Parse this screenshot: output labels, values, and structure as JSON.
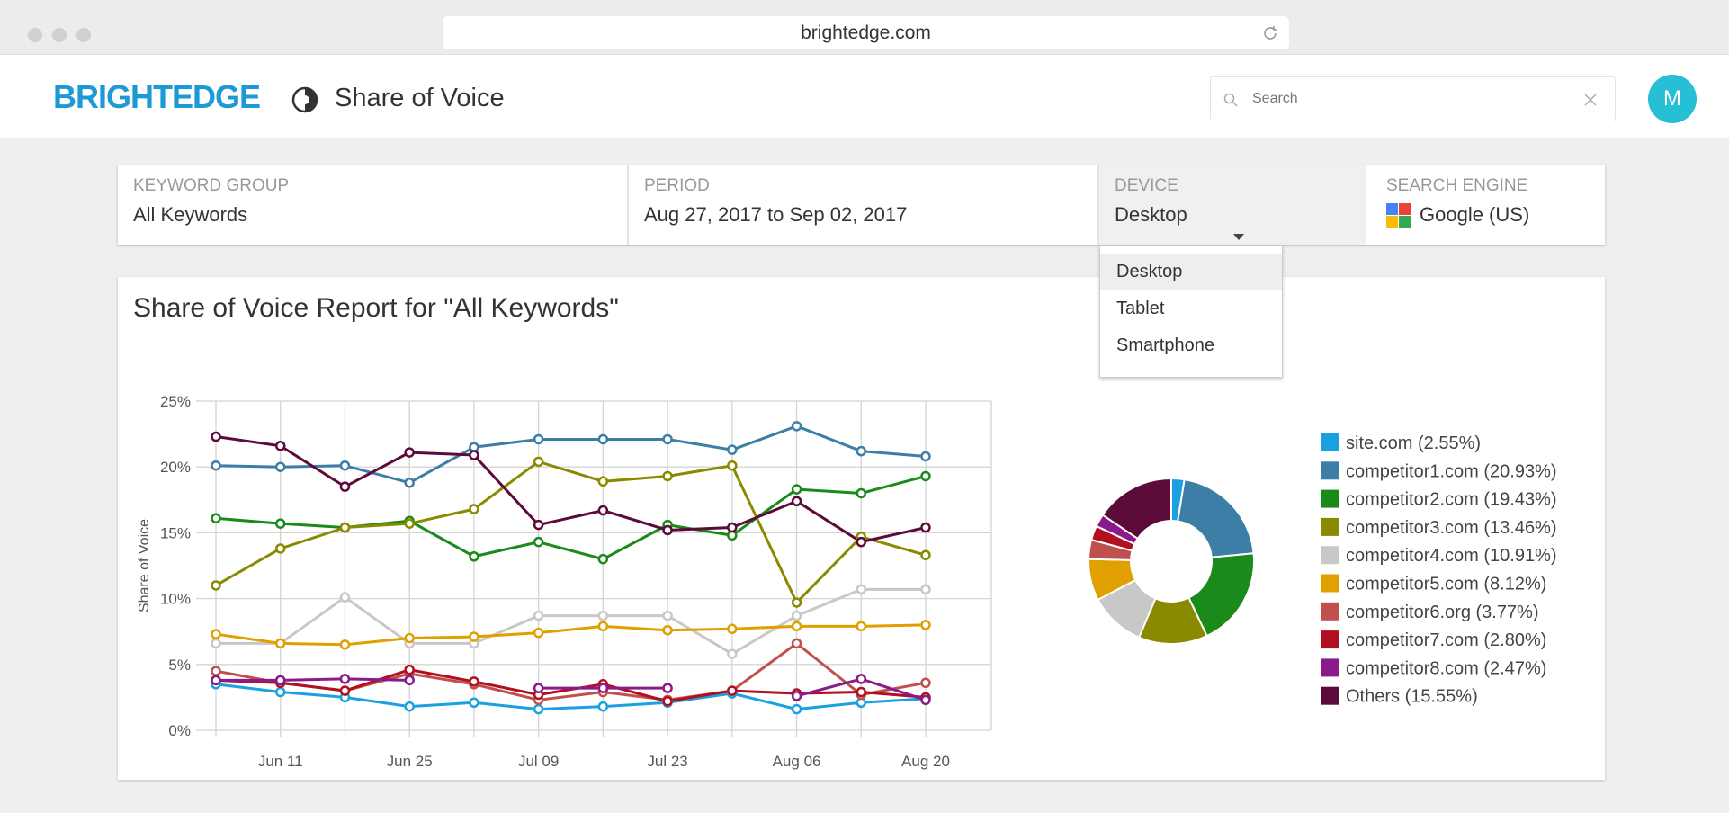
{
  "browser": {
    "url": "brightedge.com"
  },
  "header": {
    "logo": "BRIGHTEDGE",
    "page_title": "Share of Voice",
    "search": "Search",
    "avatar": "M"
  },
  "filters": [
    {
      "label": "KEYWORD GROUP",
      "value": "All Keywords"
    },
    {
      "label": "PERIOD",
      "value": "Aug 27, 2017 to Sep 02, 2017"
    },
    {
      "label": "DEVICE",
      "value": "Desktop"
    },
    {
      "label": "SEARCH ENGINE",
      "value": "Google (US)"
    }
  ],
  "device_menu": [
    "Desktop",
    "Tablet",
    "Smartphone"
  ],
  "report": {
    "title": "Share of Voice Report for \"All Keywords\""
  },
  "chart_data": [
    {
      "type": "line",
      "y_label": "Share of Voice",
      "categories": [
        null,
        "Jun 11",
        null,
        "Jun 25",
        null,
        "Jul 09",
        null,
        "Jul 23",
        null,
        "Aug 06",
        null,
        "Aug 20"
      ],
      "ylim": [
        0,
        25
      ],
      "yticks": [
        {
          "value": 0,
          "label": "0%"
        },
        {
          "value": 5,
          "label": "5%"
        },
        {
          "value": 10,
          "label": "10%"
        },
        {
          "value": 15,
          "label": "15%"
        },
        {
          "value": 20,
          "label": "20%"
        },
        {
          "value": 25,
          "label": "25%"
        }
      ],
      "grid": true,
      "series": [
        {
          "color": "#1ba1e2",
          "values": [
            3.5,
            2.9,
            2.5,
            1.8,
            2.1,
            1.6,
            1.8,
            2.1,
            2.8,
            1.6,
            2.1,
            2.4
          ]
        },
        {
          "color": "#3d7ea6",
          "values": [
            20.1,
            20.0,
            20.1,
            18.8,
            21.5,
            22.1,
            22.1,
            22.1,
            21.3,
            23.1,
            21.2,
            20.8
          ]
        },
        {
          "color": "#1a8a1a",
          "values": [
            16.1,
            15.7,
            15.4,
            15.9,
            13.2,
            14.3,
            13.0,
            15.6,
            14.8,
            18.3,
            18.0,
            19.3
          ]
        },
        {
          "color": "#8a8a00",
          "values": [
            11.0,
            13.8,
            15.4,
            15.7,
            16.8,
            20.4,
            18.9,
            19.3,
            20.1,
            9.7,
            14.7,
            13.3
          ]
        },
        {
          "color": "#c8c8c8",
          "values": [
            6.6,
            6.6,
            10.1,
            6.6,
            6.6,
            8.7,
            8.7,
            8.7,
            5.8,
            8.7,
            10.7,
            10.7
          ]
        },
        {
          "color": "#e0a000",
          "values": [
            7.3,
            6.6,
            6.5,
            7.0,
            7.1,
            7.4,
            7.9,
            7.6,
            7.7,
            7.9,
            7.9,
            8.0
          ]
        },
        {
          "color": "#c0504d",
          "values": [
            4.5,
            3.6,
            3.0,
            4.3,
            3.5,
            2.3,
            2.9,
            2.3,
            3.0,
            6.6,
            2.7,
            3.6
          ]
        },
        {
          "color": "#b01020",
          "values": [
            3.8,
            3.6,
            3.0,
            4.6,
            3.7,
            2.7,
            3.5,
            2.2,
            3.0,
            2.8,
            2.9,
            2.5
          ]
        },
        {
          "color": "#8b1a8b",
          "values": [
            3.8,
            3.8,
            3.9,
            3.8,
            null,
            3.2,
            3.2,
            3.2,
            null,
            2.6,
            3.9,
            2.3
          ]
        },
        {
          "color": "#5c0a3a",
          "values": [
            22.3,
            21.6,
            18.5,
            21.1,
            20.9,
            15.6,
            16.7,
            15.2,
            15.4,
            17.4,
            14.3,
            15.4
          ]
        }
      ]
    },
    {
      "type": "pie",
      "categories": [
        "site.com (2.55%)",
        "competitor1.com (20.93%)",
        "competitor2.com (19.43%)",
        "competitor3.com (13.46%)",
        "competitor4.com (10.91%)",
        "competitor5.com (8.12%)",
        "competitor6.org (3.77%)",
        "competitor7.com (2.80%)",
        "competitor8.com (2.47%)",
        "Others (15.55%)"
      ],
      "values": [
        2.55,
        20.93,
        19.43,
        13.46,
        10.91,
        8.12,
        3.77,
        2.8,
        2.47,
        15.55
      ],
      "colors": [
        "#1ba1e2",
        "#3d7ea6",
        "#1a8a1a",
        "#8a8a00",
        "#c8c8c8",
        "#e0a000",
        "#c0504d",
        "#b01020",
        "#8b1a8b",
        "#5c0a3a"
      ]
    }
  ]
}
